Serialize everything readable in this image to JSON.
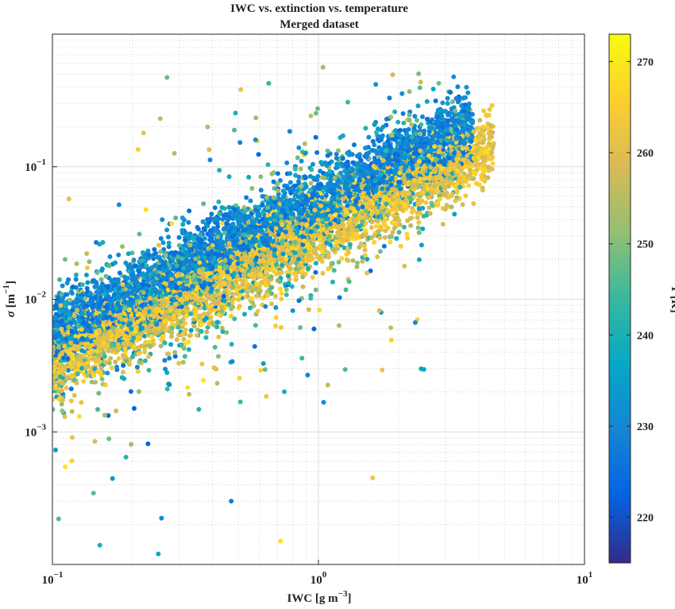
{
  "chart_data": {
    "type": "scatter",
    "title": "IWC vs. extinction vs. temperature",
    "subtitle": "Merged dataset",
    "xlabel": {
      "base": "IWC [g m",
      "sup": "−3",
      "end": "]"
    },
    "ylabel": {
      "sym": "σ",
      "base": " [m",
      "sup": "−1",
      "end": "]"
    },
    "xscale": "log",
    "yscale": "log",
    "xlim": [
      0.1,
      10
    ],
    "ylim": [
      0.0001,
      1
    ],
    "x_ticks": [
      {
        "value": 0.1,
        "base": "10",
        "exp": "−1"
      },
      {
        "value": 1,
        "base": "10",
        "exp": "0"
      },
      {
        "value": 10,
        "base": "10",
        "exp": "1"
      }
    ],
    "y_ticks": [
      {
        "value": 0.001,
        "base": "10",
        "exp": "−3"
      },
      {
        "value": 0.01,
        "base": "10",
        "exp": "−2"
      },
      {
        "value": 0.1,
        "base": "10",
        "exp": "−1"
      }
    ],
    "grid": true,
    "colorbar": {
      "label": "T [K]",
      "range": [
        215,
        273
      ],
      "ticks": [
        220,
        230,
        240,
        250,
        260,
        270
      ],
      "colormap": "parula"
    },
    "series": [
      {
        "color_by": "temperature",
        "approx_relation": "log10(sigma) ≈ log10(IWC) − 1.26 for cold (~228 K) points and ≈ log10(IWC) − 1.5 for warm (~262 K) points; most IWC between 0.1 and 4.5 g m−3"
      }
    ],
    "highlighted_points": [
      {
        "x": 1.85,
        "y": 0.33,
        "t": 228
      },
      {
        "x": 1.75,
        "y": 0.2,
        "t": 234
      },
      {
        "x": 0.22,
        "y": 0.18,
        "t": 262
      },
      {
        "x": 0.21,
        "y": 0.135,
        "t": 266
      },
      {
        "x": 0.78,
        "y": 0.185,
        "t": 229
      },
      {
        "x": 0.58,
        "y": 0.16,
        "t": 233
      },
      {
        "x": 0.72,
        "y": 0.00015,
        "t": 268
      },
      {
        "x": 1.6,
        "y": 0.00045,
        "t": 262
      },
      {
        "x": 0.25,
        "y": 0.00012,
        "t": 238
      },
      {
        "x": 0.47,
        "y": 0.0003,
        "t": 228
      }
    ]
  }
}
